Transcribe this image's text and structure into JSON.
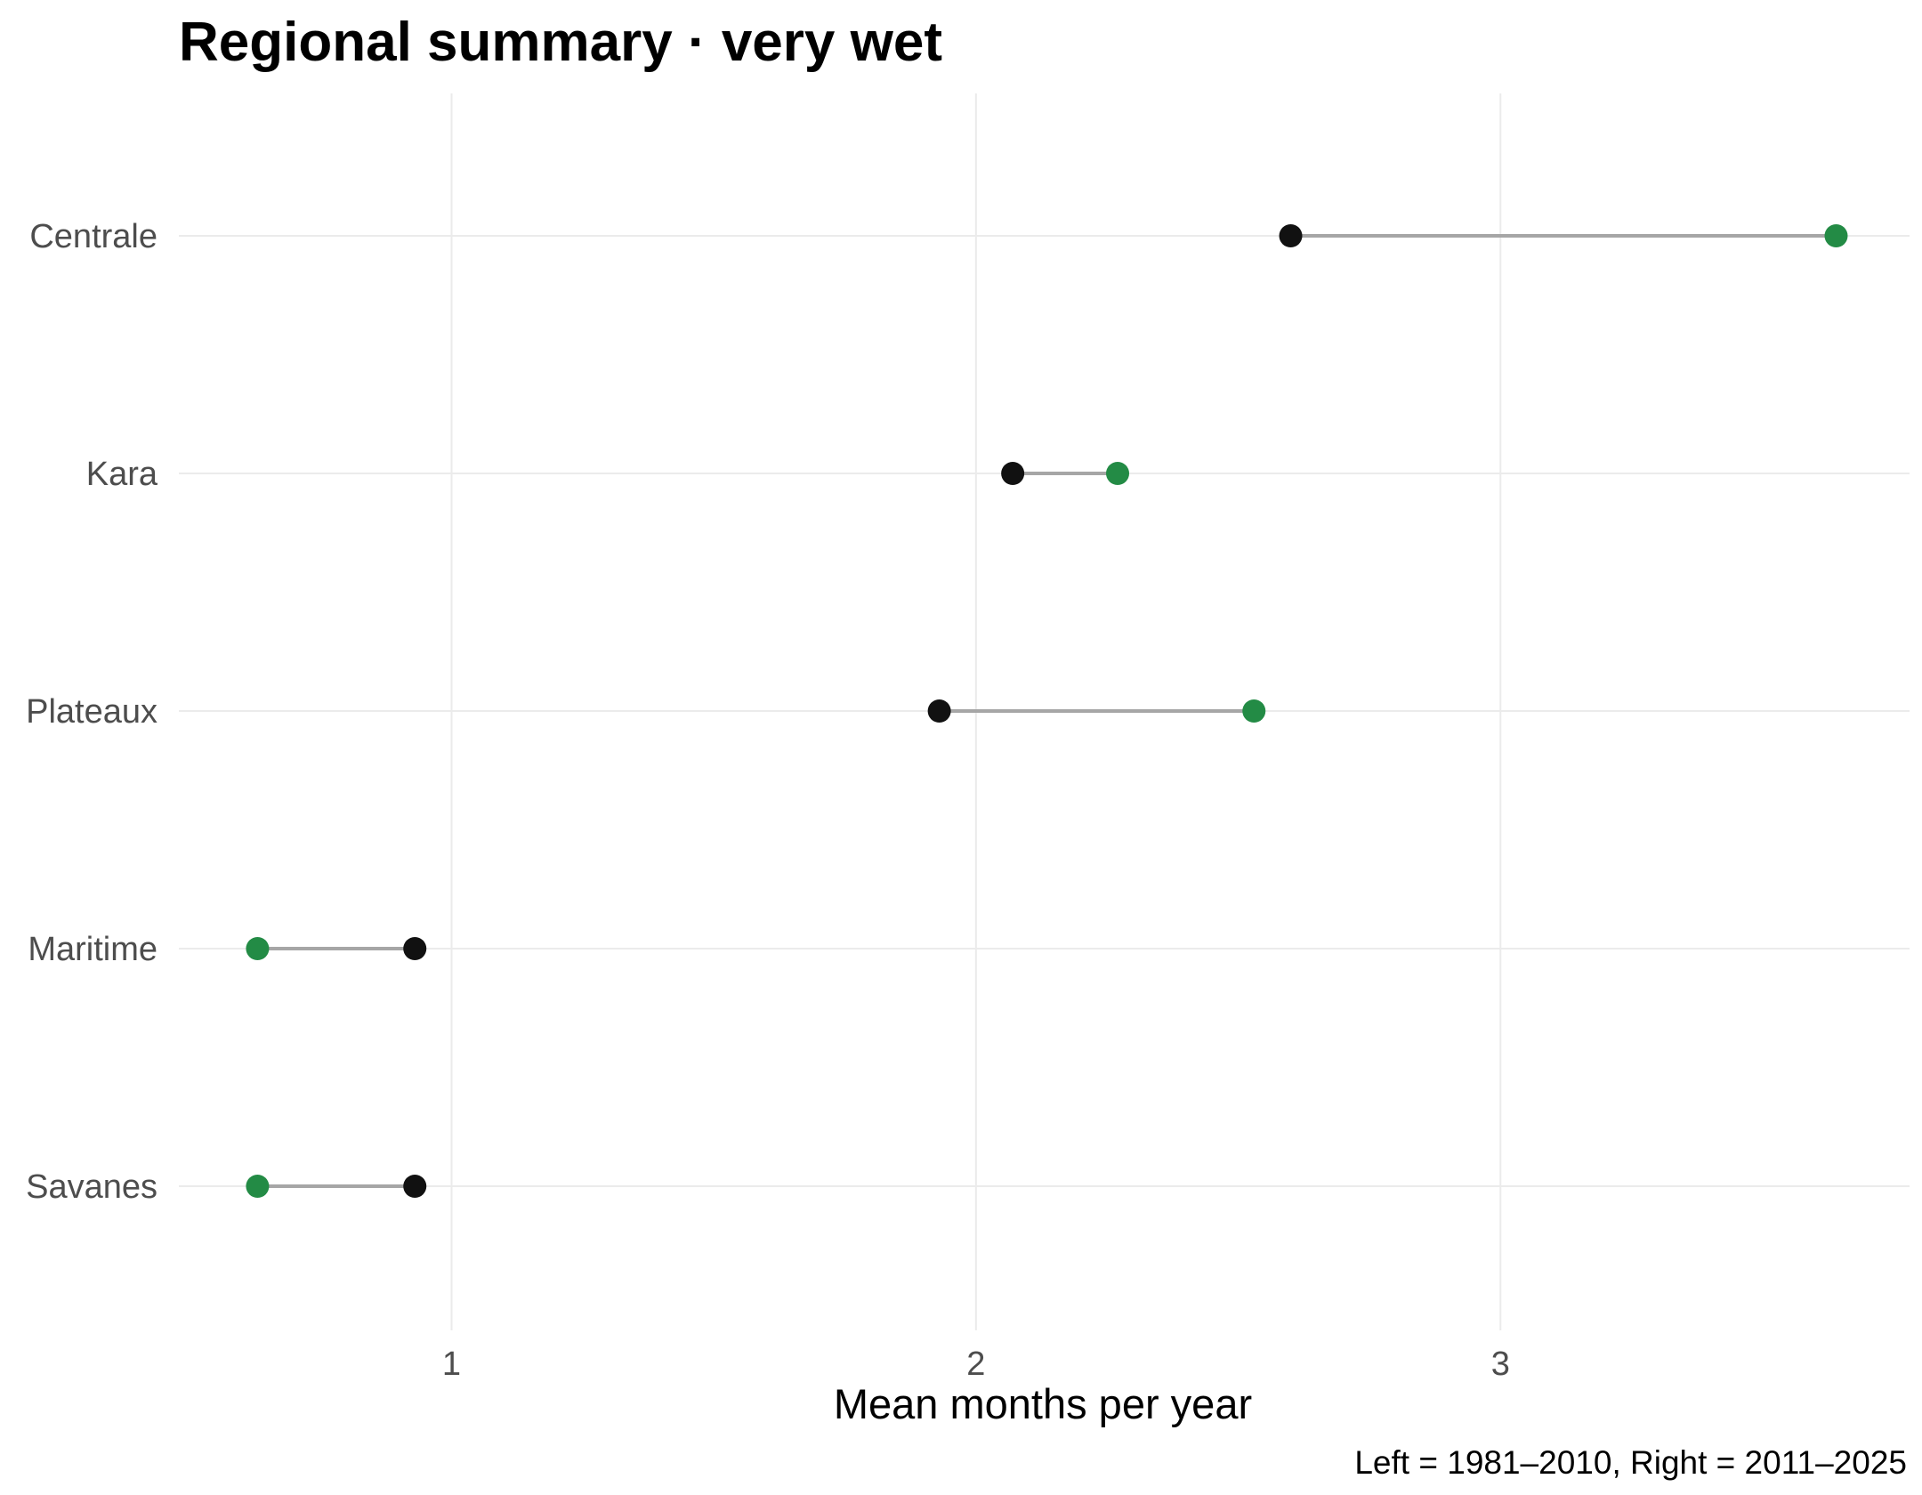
{
  "chart_data": {
    "type": "dumbbell",
    "title": "Regional summary · very wet",
    "xlabel": "Mean months per year",
    "ylabel": "",
    "caption": "Left = 1981–2010, Right = 2011–2025",
    "xlim": [
      0.48,
      3.78
    ],
    "x_ticks": [
      1,
      2,
      3
    ],
    "categories": [
      "Centrale",
      "Kara",
      "Plateaux",
      "Maritime",
      "Savanes"
    ],
    "series": [
      {
        "period": "1981–2010",
        "color": "#111111",
        "values": [
          2.6,
          2.07,
          1.93,
          0.93,
          0.93
        ]
      },
      {
        "period": "2011–2025",
        "color": "#238b45",
        "values": [
          3.64,
          2.27,
          2.53,
          0.63,
          0.63
        ]
      }
    ],
    "segment_color": "#a6a6a6",
    "grid": true,
    "legend": "none"
  }
}
